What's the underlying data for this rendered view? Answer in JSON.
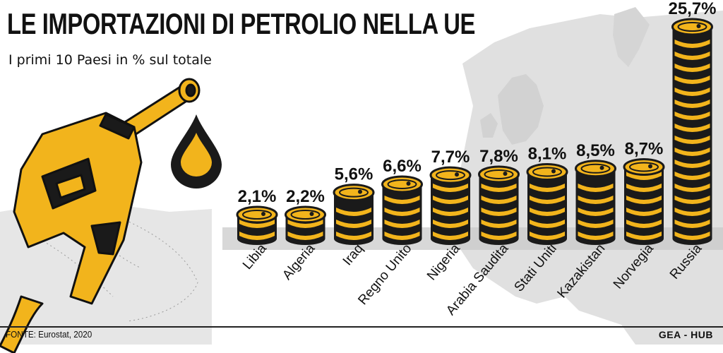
{
  "title": "LE IMPORTAZIONI DI PETROLIO NELLA UE",
  "subtitle": "I primi 10 Paesi in % sul totale",
  "source": "FONTE: Eurostat, 2020",
  "credit": "GEA - HUB",
  "colors": {
    "barrel_yellow": "#f2b41c",
    "barrel_dark": "#1a1a1a",
    "map_gray": "#d9d9d9",
    "shadow": "#c8c8c8"
  },
  "icons": [
    "fuel-nozzle-icon",
    "oil-drop-icon",
    "oil-barrel-icon",
    "europe-map-background"
  ],
  "chart_data": {
    "type": "bar",
    "categories": [
      "Libia",
      "Algeria",
      "Iraq",
      "Regno Unito",
      "Nigeria",
      "Arabia Saudita",
      "Stati Uniti",
      "Kazakistan",
      "Norvegia",
      "Russia"
    ],
    "values": [
      2.1,
      2.2,
      5.6,
      6.6,
      7.7,
      7.8,
      8.1,
      8.5,
      8.7,
      25.7
    ],
    "value_labels": [
      "2,1%",
      "2,2%",
      "5,6%",
      "6,6%",
      "7,7%",
      "7,8%",
      "8,1%",
      "8,5%",
      "8,7%",
      "25,7%"
    ],
    "title": "LE IMPORTAZIONI DI PETROLIO NELLA UE",
    "subtitle": "I primi 10 Paesi in % sul totale",
    "unit": "%",
    "xlabel": "",
    "ylabel": ""
  }
}
